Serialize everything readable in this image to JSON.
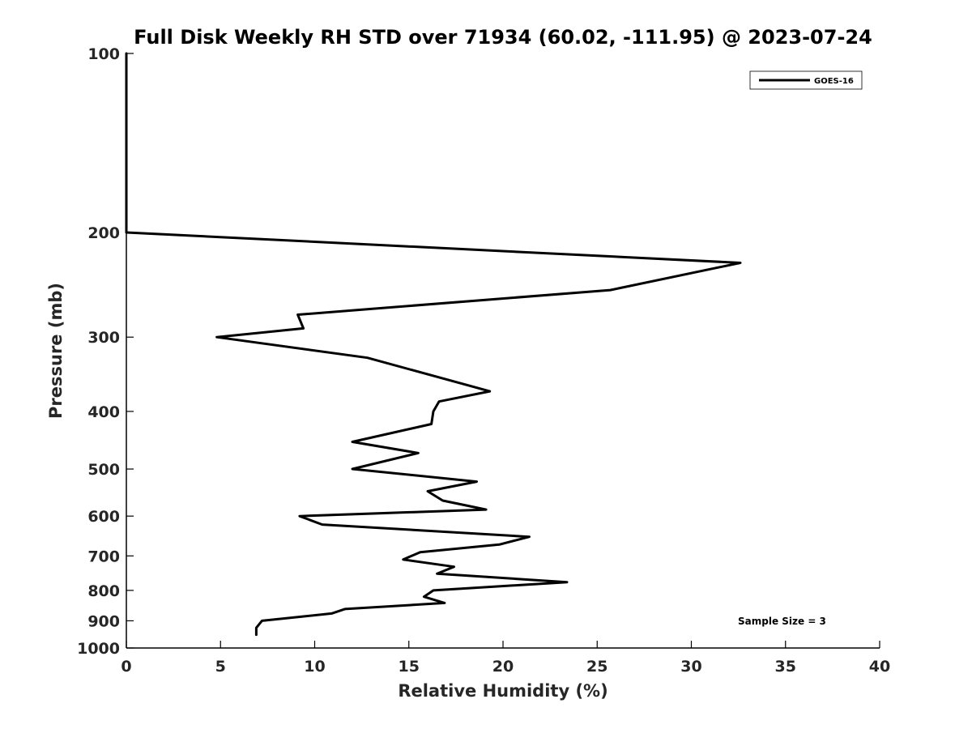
{
  "chart_data": {
    "type": "line",
    "title": "Full Disk Weekly RH STD over 71934 (60.02, -111.95) @ 2023-07-24",
    "xlabel": "Relative Humidity (%)",
    "ylabel": "Pressure (mb)",
    "xlim": [
      0,
      40
    ],
    "ylim": [
      100,
      1000
    ],
    "y_scale": "log",
    "y_inverted": true,
    "x_ticks": [
      0,
      5,
      10,
      15,
      20,
      25,
      30,
      35,
      40
    ],
    "y_ticks": [
      100,
      200,
      300,
      400,
      500,
      600,
      700,
      800,
      900,
      1000
    ],
    "grid": false,
    "legend_position": "top-right",
    "color": "#000000",
    "series": [
      {
        "name": "GOES-16",
        "points": [
          [
            0.0,
            100
          ],
          [
            0.0,
            150
          ],
          [
            0.0,
            200
          ],
          [
            32.6,
            225
          ],
          [
            25.7,
            250
          ],
          [
            9.1,
            275
          ],
          [
            9.4,
            290
          ],
          [
            4.8,
            300
          ],
          [
            12.8,
            325
          ],
          [
            19.3,
            370
          ],
          [
            16.6,
            385
          ],
          [
            16.3,
            400
          ],
          [
            16.2,
            420
          ],
          [
            12.0,
            450
          ],
          [
            15.5,
            470
          ],
          [
            12.0,
            500
          ],
          [
            18.6,
            525
          ],
          [
            16.0,
            545
          ],
          [
            16.8,
            565
          ],
          [
            19.1,
            585
          ],
          [
            9.2,
            600
          ],
          [
            10.4,
            620
          ],
          [
            21.4,
            650
          ],
          [
            19.8,
            670
          ],
          [
            15.6,
            690
          ],
          [
            14.7,
            710
          ],
          [
            17.4,
            730
          ],
          [
            16.5,
            750
          ],
          [
            23.4,
            775
          ],
          [
            16.3,
            800
          ],
          [
            15.8,
            820
          ],
          [
            16.9,
            840
          ],
          [
            11.6,
            860
          ],
          [
            10.9,
            875
          ],
          [
            7.2,
            900
          ],
          [
            6.9,
            925
          ],
          [
            6.9,
            950
          ]
        ]
      }
    ],
    "annotation": "Sample Size = 3"
  }
}
